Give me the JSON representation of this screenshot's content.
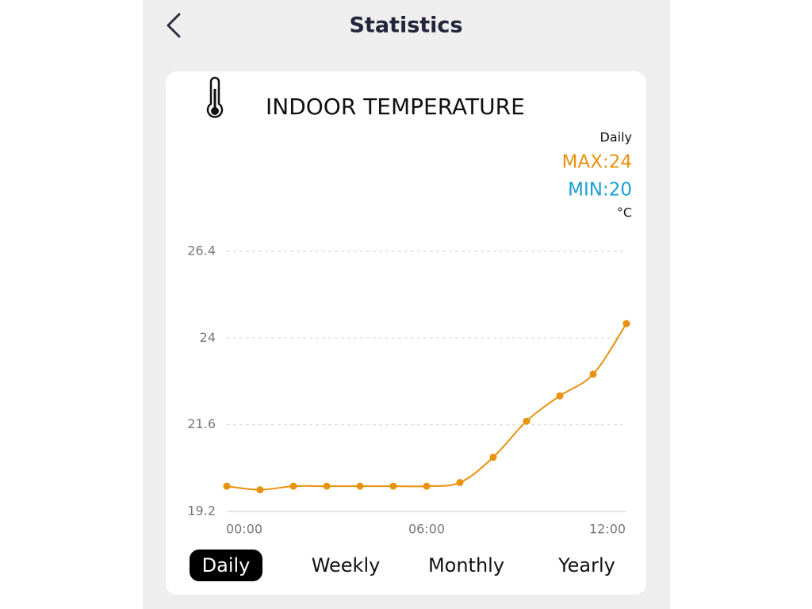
{
  "header": {
    "title": "Statistics"
  },
  "card": {
    "title": "INDOOR TEMPERATURE",
    "period": "Daily",
    "max": "MAX:24",
    "min": "MIN:20",
    "unit": "°C"
  },
  "chart_data": {
    "type": "line",
    "categories": [
      "00:00",
      null,
      null,
      null,
      null,
      null,
      "06:00",
      null,
      null,
      null,
      null,
      null,
      "12:00"
    ],
    "series": [
      {
        "color": "#e8920e",
        "values": [
          19.9,
          19.8,
          19.9,
          19.9,
          19.9,
          19.9,
          19.9,
          20.0,
          20.7,
          21.7,
          22.4,
          23.0,
          24.4
        ]
      }
    ],
    "ylim": [
      19.2,
      26.4
    ],
    "yticks": [
      19.2,
      21.6,
      24,
      26.4
    ],
    "grid": true
  },
  "tabs": [
    {
      "label": "Daily",
      "selected": true
    },
    {
      "label": "Weekly",
      "selected": false
    },
    {
      "label": "Monthly",
      "selected": false
    },
    {
      "label": "Yearly",
      "selected": false
    }
  ]
}
